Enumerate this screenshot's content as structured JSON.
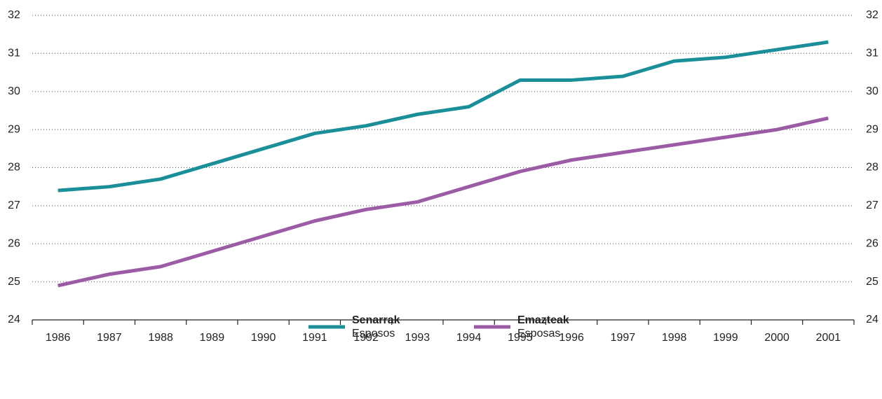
{
  "chart_data": {
    "type": "line",
    "categories": [
      "1986",
      "1987",
      "1988",
      "1989",
      "1990",
      "1991",
      "1992",
      "1993",
      "1994",
      "1995",
      "1996",
      "1997",
      "1998",
      "1999",
      "2000",
      "2001"
    ],
    "series": [
      {
        "name": "Senarrak",
        "subname": "Esposos",
        "color": "#1a8f99",
        "values": [
          27.4,
          27.5,
          27.7,
          28.1,
          28.5,
          28.9,
          29.1,
          29.4,
          29.6,
          30.3,
          30.3,
          30.4,
          30.8,
          30.9,
          31.1,
          31.3
        ]
      },
      {
        "name": "Emazteak",
        "subname": "Esposas",
        "color": "#9b5ba5",
        "values": [
          24.9,
          25.2,
          25.4,
          25.8,
          26.2,
          26.6,
          26.9,
          27.1,
          27.5,
          27.9,
          28.2,
          28.4,
          28.6,
          28.8,
          29.0,
          29.3
        ]
      }
    ],
    "ylim": [
      24,
      32
    ],
    "yticks": [
      24,
      25,
      26,
      27,
      28,
      29,
      30,
      31,
      32
    ],
    "grid": true
  }
}
